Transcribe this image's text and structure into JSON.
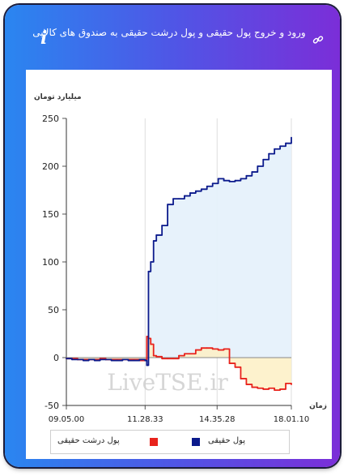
{
  "header": {
    "title": "ورود و خروج پول حقیقی و پول درشت حقیقی به صندوق های کالایی",
    "info_icon": "i",
    "link_icon_name": "link-icon"
  },
  "chart_data": {
    "type": "line",
    "ylabel": "میلیارد تومان",
    "xlabel": "زمان",
    "ylim": [
      -50,
      250
    ],
    "yticks": [
      -50,
      0,
      50,
      100,
      150,
      200,
      250
    ],
    "xticks": [
      "09.05.00",
      "11.28.33",
      "14.35.28",
      "18.01.10"
    ],
    "watermark": "LiveTSE.ir",
    "grid": "vertical only",
    "series": [
      {
        "name": "پول حقیقی",
        "color": "#0b1a8c",
        "fill": "#e4f1fb",
        "x": [
          0,
          1,
          2,
          3,
          4,
          5,
          6,
          7,
          8,
          9,
          10,
          11,
          12,
          13,
          14,
          14.3,
          14.6,
          15,
          15.5,
          16,
          17,
          18,
          19,
          20,
          21,
          22,
          23,
          24,
          25,
          26,
          27,
          28,
          29,
          30,
          31,
          32,
          33,
          34,
          35,
          36,
          37,
          38,
          39,
          40
        ],
        "values": [
          -1,
          -2,
          -2,
          -3,
          -2,
          -3,
          -2,
          -2,
          -3,
          -3,
          -2,
          -3,
          -3,
          -2,
          -3,
          -8,
          90,
          100,
          122,
          128,
          138,
          160,
          166,
          166,
          169,
          172,
          174,
          176,
          179,
          182,
          187,
          185,
          184,
          185,
          187,
          190,
          194,
          200,
          207,
          213,
          218,
          221,
          224,
          230
        ]
      },
      {
        "name": "پول درشت حقیقی",
        "color": "#e8231c",
        "fill": "#fdf0c4",
        "x": [
          0,
          1,
          2,
          3,
          4,
          5,
          6,
          7,
          8,
          9,
          10,
          11,
          12,
          13,
          14,
          14.3,
          14.6,
          15,
          15.5,
          16,
          17,
          18,
          19,
          20,
          21,
          22,
          23,
          24,
          25,
          26,
          27,
          28,
          29,
          30,
          31,
          32,
          33,
          34,
          35,
          36,
          37,
          38,
          39,
          40
        ],
        "values": [
          -1,
          -1,
          -2,
          -2,
          -2,
          -2,
          -1,
          -2,
          -2,
          -2,
          -2,
          -2,
          -2,
          -3,
          -2,
          22,
          20,
          14,
          2,
          1,
          -1,
          -1,
          -1,
          2,
          4,
          4,
          8,
          10,
          10,
          9,
          8,
          9,
          -6,
          -10,
          -22,
          -28,
          -31,
          -32,
          -33,
          -32,
          -34,
          -33,
          -27,
          -28
        ]
      }
    ],
    "legend": "bottom"
  }
}
